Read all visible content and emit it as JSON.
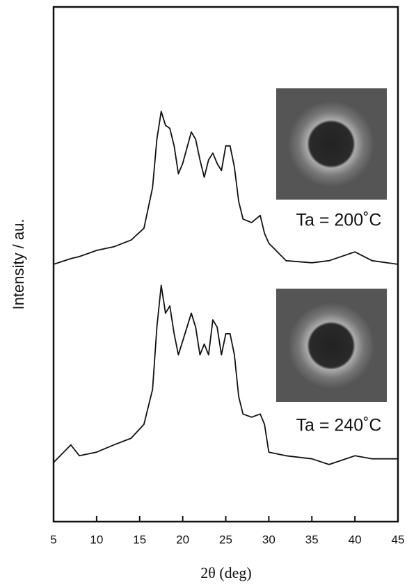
{
  "chart_data": {
    "type": "line",
    "xlabel": "2θ (deg)",
    "ylabel": "Intensity / au.",
    "x": [
      5,
      7,
      8,
      10,
      12,
      14,
      15.5,
      16.5,
      17,
      17.5,
      18,
      18.5,
      19,
      19.5,
      20,
      21,
      21.5,
      22,
      22.5,
      23,
      23.5,
      24,
      24.5,
      25,
      25.5,
      26,
      26.5,
      27,
      28,
      29,
      29.5,
      30,
      32,
      35,
      37,
      40,
      42,
      45
    ],
    "series": [
      {
        "name": "Ta = 200˚C",
        "color": "#111111",
        "values": [
          50,
          51.1,
          51.5,
          52.7,
          53.4,
          54.7,
          57,
          64.9,
          74.3,
          79.7,
          77,
          76.4,
          73,
          67.6,
          69.6,
          75.7,
          74.3,
          70.3,
          66.9,
          70.3,
          71.6,
          69.6,
          68.2,
          73,
          73,
          68.9,
          62.2,
          58.8,
          58.1,
          59.5,
          56,
          54.1,
          50.7,
          50.3,
          50.7,
          52.4,
          50.7,
          50
        ]
      },
      {
        "name": "Ta = 240˚C",
        "color": "#111111",
        "values": [
          11.5,
          14.9,
          12.8,
          13.5,
          14.9,
          16.2,
          18.9,
          25.7,
          37.8,
          45.9,
          40.5,
          41.9,
          36.5,
          32.4,
          35.1,
          40.5,
          37.8,
          32.4,
          34.5,
          32.4,
          39.2,
          37.8,
          32.4,
          36.5,
          36.5,
          32.4,
          24.3,
          20.9,
          20.3,
          20.9,
          18.9,
          13.5,
          12.8,
          12.2,
          11.1,
          12.8,
          12.2,
          12.2
        ]
      }
    ],
    "xlim": [
      5,
      45
    ],
    "xticks": [
      5,
      10,
      15,
      20,
      25,
      30,
      35,
      40,
      45
    ],
    "ylim": [
      0,
      100
    ]
  }
}
